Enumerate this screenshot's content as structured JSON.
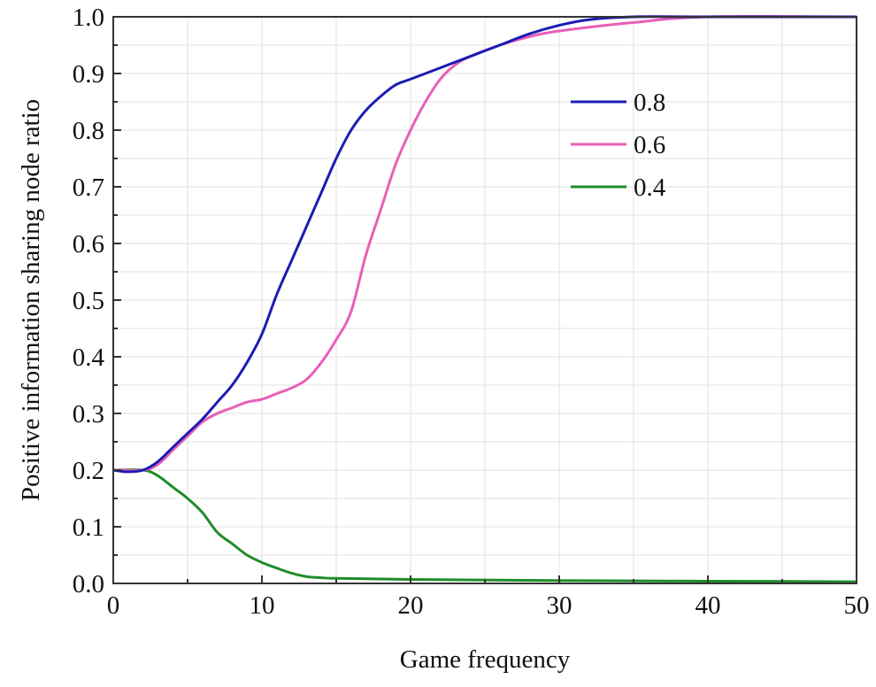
{
  "chart_data": {
    "type": "line",
    "title": "",
    "xlabel": "Game frequency",
    "ylabel": "Positive information sharing node ratio",
    "xlim": [
      0,
      50
    ],
    "ylim": [
      0,
      1.0
    ],
    "xticks": [
      "0",
      "10",
      "20",
      "30",
      "40",
      "50"
    ],
    "yticks": [
      "0.0",
      "0.1",
      "0.2",
      "0.3",
      "0.4",
      "0.5",
      "0.6",
      "0.7",
      "0.8",
      "0.9",
      "1.0"
    ],
    "grid": true,
    "legend_position": "top-right",
    "series": [
      {
        "name": "0.8",
        "color": "#1c1cb4",
        "x": [
          0,
          1,
          2,
          3,
          4,
          5,
          6,
          7,
          8,
          9,
          10,
          11,
          12,
          13,
          14,
          15,
          16,
          17,
          18,
          19,
          20,
          22,
          24,
          26,
          28,
          30,
          32,
          35,
          40,
          50
        ],
        "y": [
          0.2,
          0.197,
          0.2,
          0.215,
          0.24,
          0.265,
          0.29,
          0.32,
          0.35,
          0.39,
          0.44,
          0.51,
          0.57,
          0.63,
          0.69,
          0.75,
          0.8,
          0.835,
          0.86,
          0.88,
          0.89,
          0.91,
          0.93,
          0.95,
          0.97,
          0.985,
          0.995,
          1.0,
          1.0,
          1.0
        ]
      },
      {
        "name": "0.6",
        "color": "#e85fb8",
        "x": [
          0,
          2,
          3,
          4,
          5,
          6,
          7,
          8,
          9,
          10,
          11,
          12,
          13,
          14,
          15,
          16,
          17,
          18,
          19,
          20,
          21,
          22,
          23,
          24,
          26,
          28,
          30,
          35,
          40,
          50
        ],
        "y": [
          0.2,
          0.2,
          0.21,
          0.235,
          0.26,
          0.285,
          0.3,
          0.31,
          0.32,
          0.325,
          0.335,
          0.345,
          0.36,
          0.39,
          0.43,
          0.48,
          0.58,
          0.66,
          0.74,
          0.8,
          0.85,
          0.89,
          0.915,
          0.93,
          0.95,
          0.965,
          0.975,
          0.99,
          1.0,
          1.0
        ]
      },
      {
        "name": "0.4",
        "color": "#1f8c2a",
        "x": [
          0,
          2,
          3,
          4,
          5,
          6,
          7,
          8,
          9,
          10,
          11,
          12,
          13,
          14,
          15,
          20,
          30,
          40,
          50
        ],
        "y": [
          0.2,
          0.2,
          0.19,
          0.17,
          0.15,
          0.125,
          0.09,
          0.07,
          0.05,
          0.037,
          0.027,
          0.018,
          0.012,
          0.01,
          0.009,
          0.007,
          0.005,
          0.004,
          0.003
        ]
      }
    ]
  }
}
